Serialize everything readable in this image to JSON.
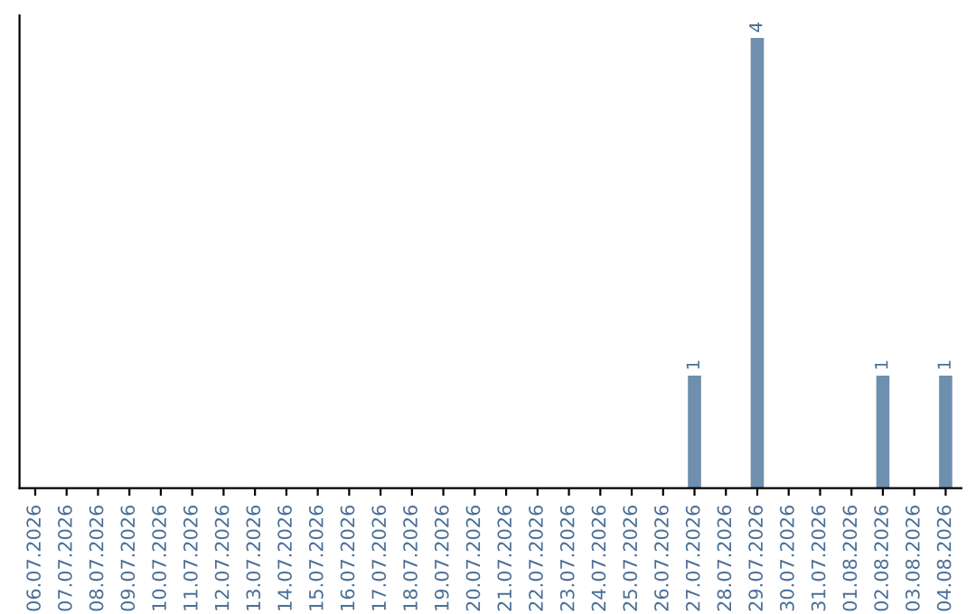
{
  "chart_data": {
    "type": "bar",
    "categories": [
      "06.07.2026",
      "07.07.2026",
      "08.07.2026",
      "09.07.2026",
      "10.07.2026",
      "11.07.2026",
      "12.07.2026",
      "13.07.2026",
      "14.07.2026",
      "15.07.2026",
      "16.07.2026",
      "17.07.2026",
      "18.07.2026",
      "19.07.2026",
      "20.07.2026",
      "21.07.2026",
      "22.07.2026",
      "23.07.2026",
      "24.07.2026",
      "25.07.2026",
      "26.07.2026",
      "27.07.2026",
      "28.07.2026",
      "29.07.2026",
      "30.07.2026",
      "31.07.2026",
      "01.08.2026",
      "02.08.2026",
      "03.08.2026",
      "04.08.2026"
    ],
    "values": [
      null,
      null,
      null,
      null,
      null,
      null,
      null,
      null,
      null,
      null,
      null,
      null,
      null,
      null,
      null,
      null,
      null,
      null,
      null,
      null,
      null,
      1,
      null,
      4,
      null,
      null,
      null,
      1,
      null,
      1
    ],
    "data_labels": true,
    "color": "#6e8fae",
    "tick_labels": "x",
    "grid": false
  }
}
